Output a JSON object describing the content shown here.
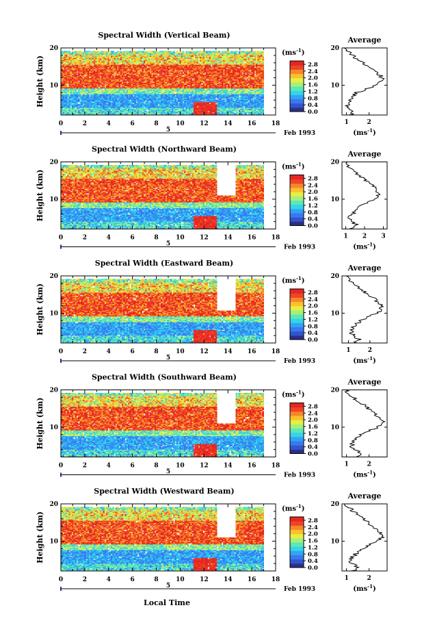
{
  "figure": {
    "date_label": "Feb 1993",
    "xaxis_label": "Local Time"
  },
  "panel_titles": [
    "Spectral Width (Vertical Beam)",
    "Spectral Width (Northward Beam)",
    "Spectral Width (Eastward Beam)",
    "Spectral Width (Southward Beam)",
    "Spectral Width (Westward Beam)"
  ],
  "labels": {
    "height_axis": "Height (km)",
    "average_title": "Average",
    "unit_base": "(ms",
    "unit_exp": "-1",
    "unit_close": ")",
    "day_tick": "5"
  },
  "colors": {
    "scale": [
      "#2b2f87",
      "#3255cc",
      "#3b78f0",
      "#2ea6f5",
      "#36d3ea",
      "#5de8b4",
      "#a6f07a",
      "#e7ee45",
      "#fbc02e",
      "#f7872a",
      "#ee4427",
      "#e52622"
    ]
  },
  "chart_data": [
    {
      "type": "heatmap",
      "title": "Spectral Width (Vertical Beam)",
      "xlabel": "",
      "ylabel": "Height (km)",
      "xlim": [
        0,
        18
      ],
      "ylim": [
        2,
        20
      ],
      "xticks": [
        "0",
        "2",
        "4",
        "6",
        "8",
        "10",
        "12",
        "14",
        "16",
        "18"
      ],
      "yticks": [
        "10",
        "20"
      ],
      "data_time_range": [
        0,
        17
      ],
      "gaps": [],
      "colorbar": {
        "label": "(ms-1)",
        "ticks": [
          "0.0",
          "0.4",
          "0.8",
          "1.2",
          "1.6",
          "2.0",
          "2.4",
          "2.8"
        ],
        "range": [
          0,
          3.0
        ]
      },
      "average_profile": {
        "title": "Average",
        "xlabel": "(ms-1)",
        "xticks": [
          "1",
          "2"
        ],
        "xlim": [
          0.8,
          2.8
        ],
        "ylim": [
          2,
          20
        ],
        "yticks": [
          "10",
          "20"
        ],
        "height": [
          2,
          3,
          4,
          5,
          6,
          7,
          8,
          9,
          10,
          11,
          12,
          13,
          14,
          15,
          16,
          17,
          18,
          19,
          20
        ],
        "width": [
          1.2,
          1.3,
          1.1,
          1.05,
          1.2,
          1.25,
          1.45,
          1.9,
          2.3,
          2.55,
          2.6,
          2.45,
          2.15,
          1.95,
          1.7,
          1.45,
          1.25,
          1.05,
          0.9
        ]
      }
    },
    {
      "type": "heatmap",
      "title": "Spectral Width (Northward Beam)",
      "xlabel": "",
      "ylabel": "Height (km)",
      "xlim": [
        0,
        18
      ],
      "ylim": [
        2,
        20
      ],
      "xticks": [
        "0",
        "2",
        "4",
        "6",
        "8",
        "10",
        "12",
        "14",
        "16",
        "18"
      ],
      "yticks": [
        "10",
        "20"
      ],
      "data_time_range": [
        0,
        17
      ],
      "gaps": [
        [
          13,
          14.6,
          11,
          20
        ]
      ],
      "colorbar": {
        "label": "(ms-1)",
        "ticks": [
          "0.0",
          "0.4",
          "0.8",
          "1.2",
          "1.6",
          "2.0",
          "2.4",
          "2.8"
        ],
        "range": [
          0,
          3.0
        ]
      },
      "average_profile": {
        "title": "Average",
        "xlabel": "(ms-1)",
        "xticks": [
          "1",
          "2",
          "3"
        ],
        "xlim": [
          0.8,
          3.2
        ],
        "ylim": [
          2,
          20
        ],
        "yticks": [
          "10",
          "20"
        ],
        "height": [
          2,
          3,
          4,
          5,
          6,
          7,
          8,
          9,
          10,
          11,
          12,
          13,
          14,
          15,
          16,
          17,
          18,
          19,
          20
        ],
        "width": [
          1.3,
          1.6,
          1.3,
          1.2,
          1.35,
          1.5,
          1.75,
          2.1,
          2.5,
          2.75,
          2.7,
          2.55,
          2.35,
          2.05,
          1.8,
          1.55,
          1.35,
          1.1,
          1.0
        ]
      }
    },
    {
      "type": "heatmap",
      "title": "Spectral Width (Eastward Beam)",
      "xlabel": "",
      "ylabel": "Height (km)",
      "xlim": [
        0,
        18
      ],
      "ylim": [
        2,
        20
      ],
      "xticks": [
        "0",
        "2",
        "4",
        "6",
        "8",
        "10",
        "12",
        "14",
        "16",
        "18"
      ],
      "yticks": [
        "10",
        "20"
      ],
      "data_time_range": [
        0,
        17
      ],
      "gaps": [
        [
          13,
          14.6,
          10.5,
          20
        ]
      ],
      "colorbar": {
        "label": "(ms-1)",
        "ticks": [
          "0.0",
          "0.4",
          "0.8",
          "1.2",
          "1.6",
          "2.0",
          "2.4",
          "2.8"
        ],
        "range": [
          0,
          3.0
        ]
      },
      "average_profile": {
        "title": "Average",
        "xlabel": "(ms-1)",
        "xticks": [
          "1",
          "2"
        ],
        "xlim": [
          0.7,
          2.8
        ],
        "ylim": [
          2,
          20
        ],
        "yticks": [
          "10",
          "20"
        ],
        "height": [
          2,
          3,
          4,
          5,
          6,
          7,
          8,
          9,
          10,
          11,
          12,
          13,
          14,
          15,
          16,
          17,
          18,
          19,
          20
        ],
        "width": [
          1.3,
          1.5,
          1.2,
          1.15,
          1.2,
          1.35,
          1.6,
          1.95,
          2.3,
          2.55,
          2.5,
          2.35,
          2.2,
          1.95,
          1.7,
          1.45,
          1.25,
          1.05,
          0.9
        ]
      }
    },
    {
      "type": "heatmap",
      "title": "Spectral Width (Southward Beam)",
      "xlabel": "",
      "ylabel": "Height (km)",
      "xlim": [
        0,
        18
      ],
      "ylim": [
        2,
        20
      ],
      "xticks": [
        "0",
        "2",
        "4",
        "6",
        "8",
        "10",
        "12",
        "14",
        "16",
        "18"
      ],
      "yticks": [
        "10",
        "20"
      ],
      "data_time_range": [
        0,
        17
      ],
      "gaps": [
        [
          13,
          14.6,
          11,
          20
        ]
      ],
      "colorbar": {
        "label": "(ms-1)",
        "ticks": [
          "0.0",
          "0.4",
          "0.8",
          "1.2",
          "1.6",
          "2.0",
          "2.4",
          "2.8"
        ],
        "range": [
          0,
          3.0
        ]
      },
      "average_profile": {
        "title": "Average",
        "xlabel": "(ms-1)",
        "xticks": [
          "1",
          "2"
        ],
        "xlim": [
          0.8,
          2.8
        ],
        "ylim": [
          2,
          20
        ],
        "yticks": [
          "10",
          "20"
        ],
        "height": [
          2,
          3,
          4,
          5,
          6,
          7,
          8,
          9,
          10,
          11,
          12,
          13,
          14,
          15,
          16,
          17,
          18,
          19,
          20
        ],
        "width": [
          1.4,
          1.6,
          1.35,
          1.2,
          1.3,
          1.4,
          1.65,
          2.0,
          2.35,
          2.6,
          2.55,
          2.4,
          2.2,
          1.95,
          1.75,
          1.5,
          1.3,
          1.1,
          0.95
        ]
      }
    },
    {
      "type": "heatmap",
      "title": "Spectral Width (Westward Beam)",
      "xlabel": "Local Time",
      "ylabel": "Height (km)",
      "xlim": [
        0,
        18
      ],
      "ylim": [
        2,
        20
      ],
      "xticks": [
        "0",
        "2",
        "4",
        "6",
        "8",
        "10",
        "12",
        "14",
        "16",
        "18"
      ],
      "yticks": [
        "10",
        "20"
      ],
      "data_time_range": [
        0,
        17
      ],
      "gaps": [
        [
          13,
          14.6,
          11,
          20
        ]
      ],
      "colorbar": {
        "label": "(ms-1)",
        "ticks": [
          "0.0",
          "0.4",
          "0.8",
          "1.2",
          "1.6",
          "2.0",
          "2.4",
          "2.8"
        ],
        "range": [
          0,
          3.0
        ]
      },
      "average_profile": {
        "title": "Average",
        "xlabel": "(ms-1)",
        "xticks": [
          "1",
          "2"
        ],
        "xlim": [
          0.8,
          2.8
        ],
        "ylim": [
          2,
          20
        ],
        "yticks": [
          "10",
          "20"
        ],
        "height": [
          2,
          3,
          4,
          5,
          6,
          7,
          8,
          9,
          10,
          11,
          12,
          13,
          14,
          15,
          16,
          17,
          18,
          19,
          20
        ],
        "width": [
          1.3,
          1.55,
          1.25,
          1.2,
          1.3,
          1.45,
          1.7,
          2.05,
          2.4,
          2.6,
          2.55,
          2.4,
          2.2,
          1.95,
          1.7,
          1.5,
          1.3,
          1.1,
          0.95
        ]
      }
    }
  ]
}
